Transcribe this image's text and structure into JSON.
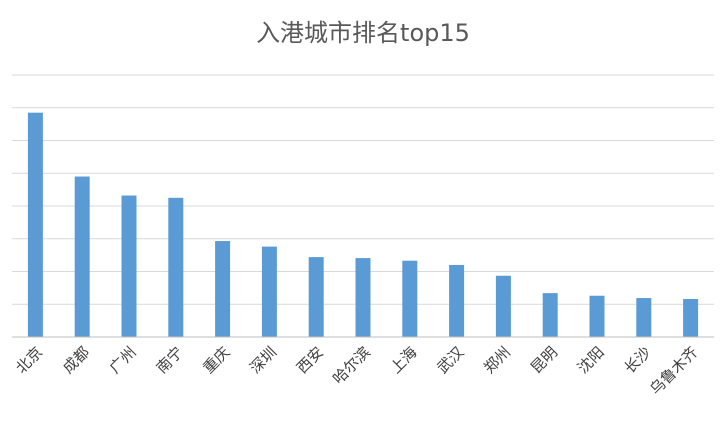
{
  "chart_data": {
    "type": "bar",
    "title": "入港城市排名top15",
    "xlabel": "",
    "ylabel": "",
    "categories": [
      "北京",
      "成都",
      "广州",
      "南宁",
      "重庆",
      "深圳",
      "西安",
      "哈尔滨",
      "上海",
      "武汉",
      "郑州",
      "昆明",
      "沈阳",
      "长沙",
      "乌鲁木齐"
    ],
    "values": [
      6.85,
      4.9,
      4.32,
      4.25,
      2.93,
      2.76,
      2.44,
      2.41,
      2.33,
      2.2,
      1.87,
      1.34,
      1.26,
      1.19,
      1.16
    ],
    "ylim": [
      0,
      8
    ],
    "yticks": [
      0,
      1,
      2,
      3,
      4,
      5,
      6,
      7,
      8
    ],
    "ytick_labels_visible": false,
    "grid": true,
    "bar_color": "#5b9bd5"
  }
}
